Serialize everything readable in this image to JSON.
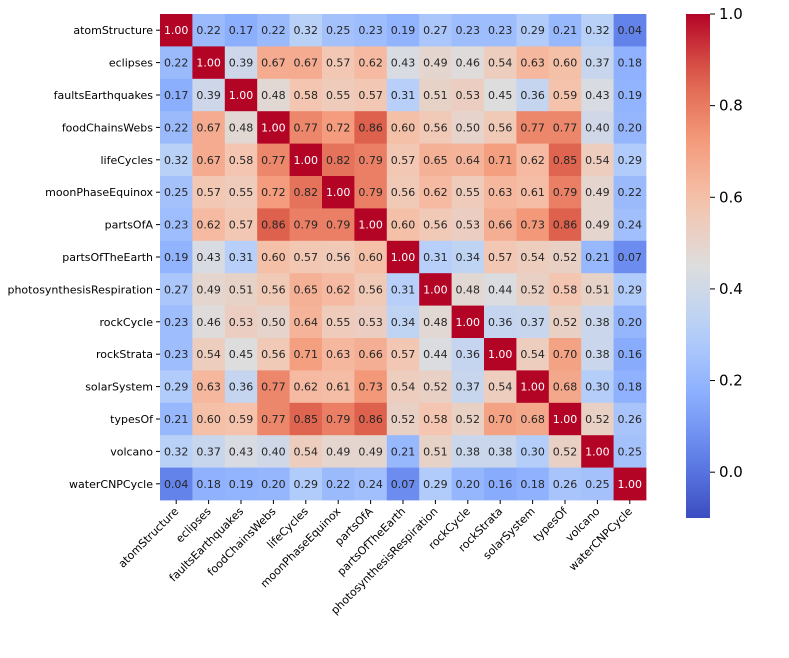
{
  "chart_data": {
    "type": "heatmap",
    "title": "",
    "xlabel": "",
    "ylabel": "",
    "labels": [
      "atomStructure",
      "eclipses",
      "faultsEarthquakes",
      "foodChainsWebs",
      "lifeCycles",
      "moonPhaseEquinox",
      "partsOfA",
      "partsOfTheEarth",
      "photosynthesisRespiration",
      "rockCycle",
      "rockStrata",
      "solarSystem",
      "typesOf",
      "volcano",
      "waterCNPCycle"
    ],
    "values": [
      [
        1.0,
        0.22,
        0.17,
        0.22,
        0.32,
        0.25,
        0.23,
        0.19,
        0.27,
        0.23,
        0.23,
        0.29,
        0.21,
        0.32,
        0.04
      ],
      [
        0.22,
        1.0,
        0.39,
        0.67,
        0.67,
        0.57,
        0.62,
        0.43,
        0.49,
        0.46,
        0.54,
        0.63,
        0.6,
        0.37,
        0.18
      ],
      [
        0.17,
        0.39,
        1.0,
        0.48,
        0.58,
        0.55,
        0.57,
        0.31,
        0.51,
        0.53,
        0.45,
        0.36,
        0.59,
        0.43,
        0.19
      ],
      [
        0.22,
        0.67,
        0.48,
        1.0,
        0.77,
        0.72,
        0.86,
        0.6,
        0.56,
        0.5,
        0.56,
        0.77,
        0.77,
        0.4,
        0.2
      ],
      [
        0.32,
        0.67,
        0.58,
        0.77,
        1.0,
        0.82,
        0.79,
        0.57,
        0.65,
        0.64,
        0.71,
        0.62,
        0.85,
        0.54,
        0.29
      ],
      [
        0.25,
        0.57,
        0.55,
        0.72,
        0.82,
        1.0,
        0.79,
        0.56,
        0.62,
        0.55,
        0.63,
        0.61,
        0.79,
        0.49,
        0.22
      ],
      [
        0.23,
        0.62,
        0.57,
        0.86,
        0.79,
        0.79,
        1.0,
        0.6,
        0.56,
        0.53,
        0.66,
        0.73,
        0.86,
        0.49,
        0.24
      ],
      [
        0.19,
        0.43,
        0.31,
        0.6,
        0.57,
        0.56,
        0.6,
        1.0,
        0.31,
        0.34,
        0.57,
        0.54,
        0.52,
        0.21,
        0.07
      ],
      [
        0.27,
        0.49,
        0.51,
        0.56,
        0.65,
        0.62,
        0.56,
        0.31,
        1.0,
        0.48,
        0.44,
        0.52,
        0.58,
        0.51,
        0.29
      ],
      [
        0.23,
        0.46,
        0.53,
        0.5,
        0.64,
        0.55,
        0.53,
        0.34,
        0.48,
        1.0,
        0.36,
        0.37,
        0.52,
        0.38,
        0.2
      ],
      [
        0.23,
        0.54,
        0.45,
        0.56,
        0.71,
        0.63,
        0.66,
        0.57,
        0.44,
        0.36,
        1.0,
        0.54,
        0.7,
        0.38,
        0.16
      ],
      [
        0.29,
        0.63,
        0.36,
        0.77,
        0.62,
        0.61,
        0.73,
        0.54,
        0.52,
        0.37,
        0.54,
        1.0,
        0.68,
        0.3,
        0.18
      ],
      [
        0.21,
        0.6,
        0.59,
        0.77,
        0.85,
        0.79,
        0.86,
        0.52,
        0.58,
        0.52,
        0.7,
        0.68,
        1.0,
        0.52,
        0.26
      ],
      [
        0.32,
        0.37,
        0.43,
        0.4,
        0.54,
        0.49,
        0.49,
        0.21,
        0.51,
        0.38,
        0.38,
        0.3,
        0.52,
        1.0,
        0.25
      ],
      [
        0.04,
        0.18,
        0.19,
        0.2,
        0.29,
        0.22,
        0.24,
        0.07,
        0.29,
        0.2,
        0.16,
        0.18,
        0.26,
        0.25,
        1.0
      ]
    ],
    "value_format": "2 decimals",
    "colormap": "coolwarm",
    "vmin": -0.1,
    "vmax": 1.0,
    "colorbar_ticks": [
      0.0,
      0.2,
      0.4,
      0.6,
      0.8,
      1.0
    ],
    "colorbar_tick_labels": [
      "0.0",
      "0.2",
      "0.4",
      "0.6",
      "0.8",
      "1.0"
    ],
    "colorbar_placement": "right",
    "annotations": true
  }
}
